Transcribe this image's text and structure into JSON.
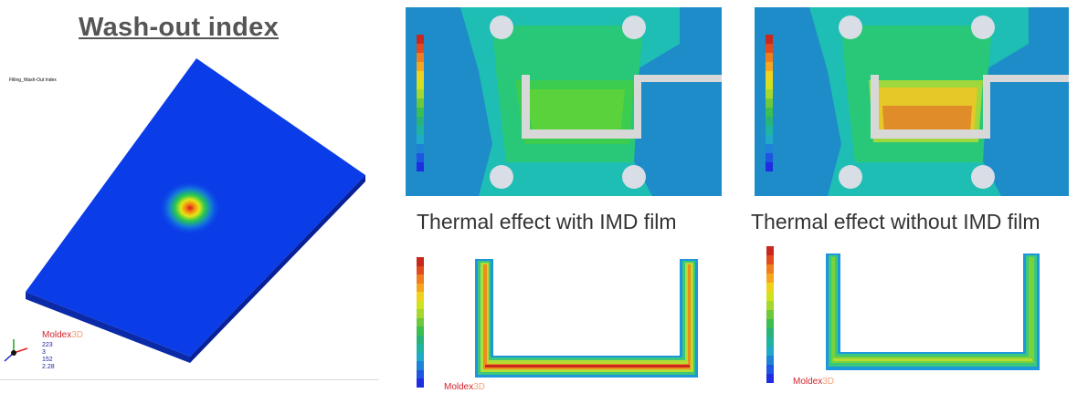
{
  "title": "Wash-out index",
  "left_panel": {
    "sim_label": "Filling_Wash-Out Index",
    "logo": {
      "brand": "Moldex",
      "mark": "3D"
    },
    "view_values": [
      "223",
      "3",
      "152",
      "2.28"
    ]
  },
  "captions": {
    "with_film": "Thermal effect with IMD film",
    "without_film": "Thermal effect without IMD film"
  },
  "bottom_left_logo": {
    "brand": "Moldex",
    "mark": "3D"
  },
  "bottom_right_logo": {
    "brand": "Moldex",
    "mark": "3D"
  },
  "colors": {
    "legend": [
      "#c8281e",
      "#e24b1e",
      "#f07d1e",
      "#f5a51e",
      "#f0d21e",
      "#d2e11e",
      "#a5d72d",
      "#6ec83c",
      "#3cbe50",
      "#28b478",
      "#1eb4a0",
      "#1eaac8",
      "#1e82d7",
      "#1e55e1",
      "#1e2de1"
    ],
    "blue_plate": "#0a3ce8",
    "cyan_field": "#1ebeb4"
  }
}
